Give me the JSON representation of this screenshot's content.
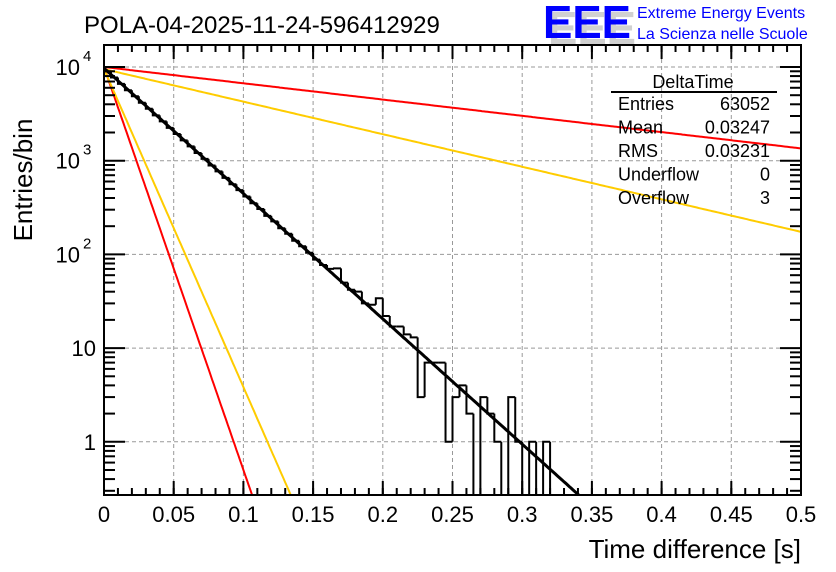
{
  "chart_data": {
    "type": "bar",
    "title": "POLA-04-2025-11-24-596412929",
    "xlabel": "Time difference [s]",
    "ylabel": "Entries/bin",
    "xlim": [
      0,
      0.5
    ],
    "ylim": [
      0.27,
      17000
    ],
    "yscale": "log",
    "grid": true,
    "bin_width": 0.005,
    "x_ticks": [
      "0",
      "0.05",
      "0.1",
      "0.15",
      "0.2",
      "0.25",
      "0.3",
      "0.35",
      "0.4",
      "0.45",
      "0.5"
    ],
    "x_tick_values": [
      0,
      0.05,
      0.1,
      0.15,
      0.2,
      0.25,
      0.3,
      0.35,
      0.4,
      0.45,
      0.5
    ],
    "y_ticks": [
      {
        "value": 1,
        "base": "1",
        "exp": ""
      },
      {
        "value": 10,
        "base": "10",
        "exp": ""
      },
      {
        "value": 100,
        "base": "10",
        "exp": "2"
      },
      {
        "value": 1000,
        "base": "10",
        "exp": "3"
      },
      {
        "value": 10000,
        "base": "10",
        "exp": "4"
      }
    ],
    "histogram": [
      8990,
      7720,
      6600,
      5650,
      4870,
      4150,
      3580,
      3050,
      2630,
      2240,
      1930,
      1650,
      1420,
      1210,
      1045,
      890,
      770,
      655,
      560,
      485,
      415,
      352,
      305,
      258,
      225,
      190,
      166,
      140,
      122,
      104,
      88,
      77,
      70,
      71,
      50,
      42,
      40,
      30,
      29,
      34,
      22,
      17,
      17,
      14,
      13,
      3,
      7,
      7,
      7,
      1,
      3,
      4,
      2,
      0,
      3,
      2,
      1,
      0,
      3,
      1,
      0,
      1,
      0,
      1,
      0,
      0,
      0,
      0,
      0,
      0,
      0,
      0,
      0,
      0,
      0,
      0,
      0,
      0,
      0,
      0,
      0,
      0,
      0,
      0,
      0,
      0,
      0,
      0,
      0,
      0,
      0,
      0,
      0,
      0,
      0,
      0,
      0,
      0,
      0,
      0
    ],
    "fit": {
      "name": "exponential fit",
      "N0": 9709,
      "tau": 0.03247,
      "color": "#000000"
    },
    "reference_lines": [
      {
        "name": "red-steep",
        "N0": 10000,
        "tau": 0.0101,
        "color": "#ff0000"
      },
      {
        "name": "red-shallow",
        "N0": 10000,
        "tau": 0.25,
        "color": "#ff0000"
      },
      {
        "name": "yellow-steep",
        "N0": 9500,
        "tau": 0.0128,
        "color": "#ffcc00"
      },
      {
        "name": "yellow-shallow",
        "N0": 9500,
        "tau": 0.125,
        "color": "#ffcc00"
      }
    ],
    "stats": {
      "title": "DeltaTime",
      "rows": [
        {
          "label": "Entries",
          "value": "63052"
        },
        {
          "label": "Mean",
          "value": "0.03247"
        },
        {
          "label": "RMS",
          "value": "0.03231"
        },
        {
          "label": "Underflow",
          "value": "0"
        },
        {
          "label": "Overflow",
          "value": "3"
        }
      ]
    }
  },
  "logo": {
    "mark": "EEE",
    "line1": "Extreme Energy Events",
    "line2": "La Scienza nelle Scuole",
    "color": "#0000ff"
  }
}
